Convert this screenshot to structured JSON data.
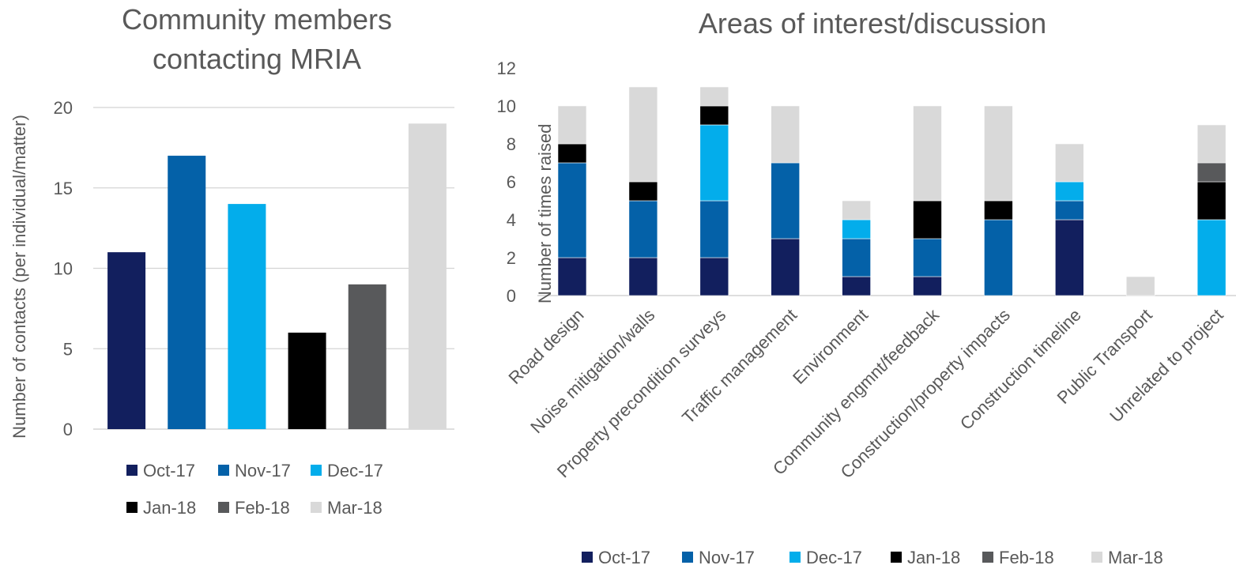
{
  "colors": {
    "Oct-17": "#121f5e",
    "Nov-17": "#0461a8",
    "Dec-17": "#03adeb",
    "Jan-18": "#000000",
    "Feb-18": "#58595b",
    "Mar-18": "#d9d9d9",
    "grid": "#d4d4d4",
    "text": "#595959"
  },
  "chart_data": [
    {
      "type": "bar",
      "title": "Community members contacting MRIA",
      "title_lines": [
        "Community members",
        "contacting MRIA"
      ],
      "xlabel": "",
      "ylabel": "Number of contacts (per individual/matter)",
      "categories": [
        "Oct-17",
        "Nov-17",
        "Dec-17",
        "Jan-18",
        "Feb-18",
        "Mar-18"
      ],
      "values": [
        11,
        17,
        14,
        6,
        9,
        19
      ],
      "ylim": [
        0,
        20
      ],
      "yticks": [
        "0",
        "5",
        "10",
        "15",
        "20"
      ],
      "grid": true,
      "legend": {
        "placement": "bottom",
        "rows": [
          [
            "Oct-17",
            "Nov-17",
            "Dec-17"
          ],
          [
            "Jan-18",
            "Feb-18",
            "Mar-18"
          ]
        ]
      }
    },
    {
      "type": "bar",
      "stacked": true,
      "title": "Areas of interest/discussion",
      "xlabel": "",
      "ylabel": "Number of times raised",
      "categories": [
        "Road design",
        "Noise mitigation/walls",
        "Property precondition surveys",
        "Traffic management",
        "Environment",
        "Community engmnt/feedback",
        "Construction/property impacts",
        "Construction timeline",
        "Public Transport",
        "Unrelated to project"
      ],
      "series": [
        {
          "name": "Oct-17",
          "values": [
            2,
            2,
            2,
            3,
            1,
            1,
            0,
            4,
            0,
            0
          ]
        },
        {
          "name": "Nov-17",
          "values": [
            5,
            3,
            3,
            4,
            2,
            2,
            4,
            1,
            0,
            0
          ]
        },
        {
          "name": "Dec-17",
          "values": [
            0,
            0,
            4,
            0,
            1,
            0,
            0,
            1,
            0,
            4
          ]
        },
        {
          "name": "Jan-18",
          "values": [
            1,
            1,
            1,
            0,
            0,
            2,
            1,
            0,
            0,
            2
          ]
        },
        {
          "name": "Feb-18",
          "values": [
            0,
            0,
            0,
            0,
            0,
            0,
            0,
            0,
            0,
            1
          ]
        },
        {
          "name": "Mar-18",
          "values": [
            2,
            5,
            1,
            3,
            1,
            5,
            5,
            2,
            1,
            2
          ]
        }
      ],
      "ylim": [
        0,
        12
      ],
      "yticks": [
        "0",
        "2",
        "4",
        "6",
        "8",
        "10",
        "12"
      ],
      "grid": true,
      "legend": {
        "placement": "bottom"
      }
    }
  ]
}
